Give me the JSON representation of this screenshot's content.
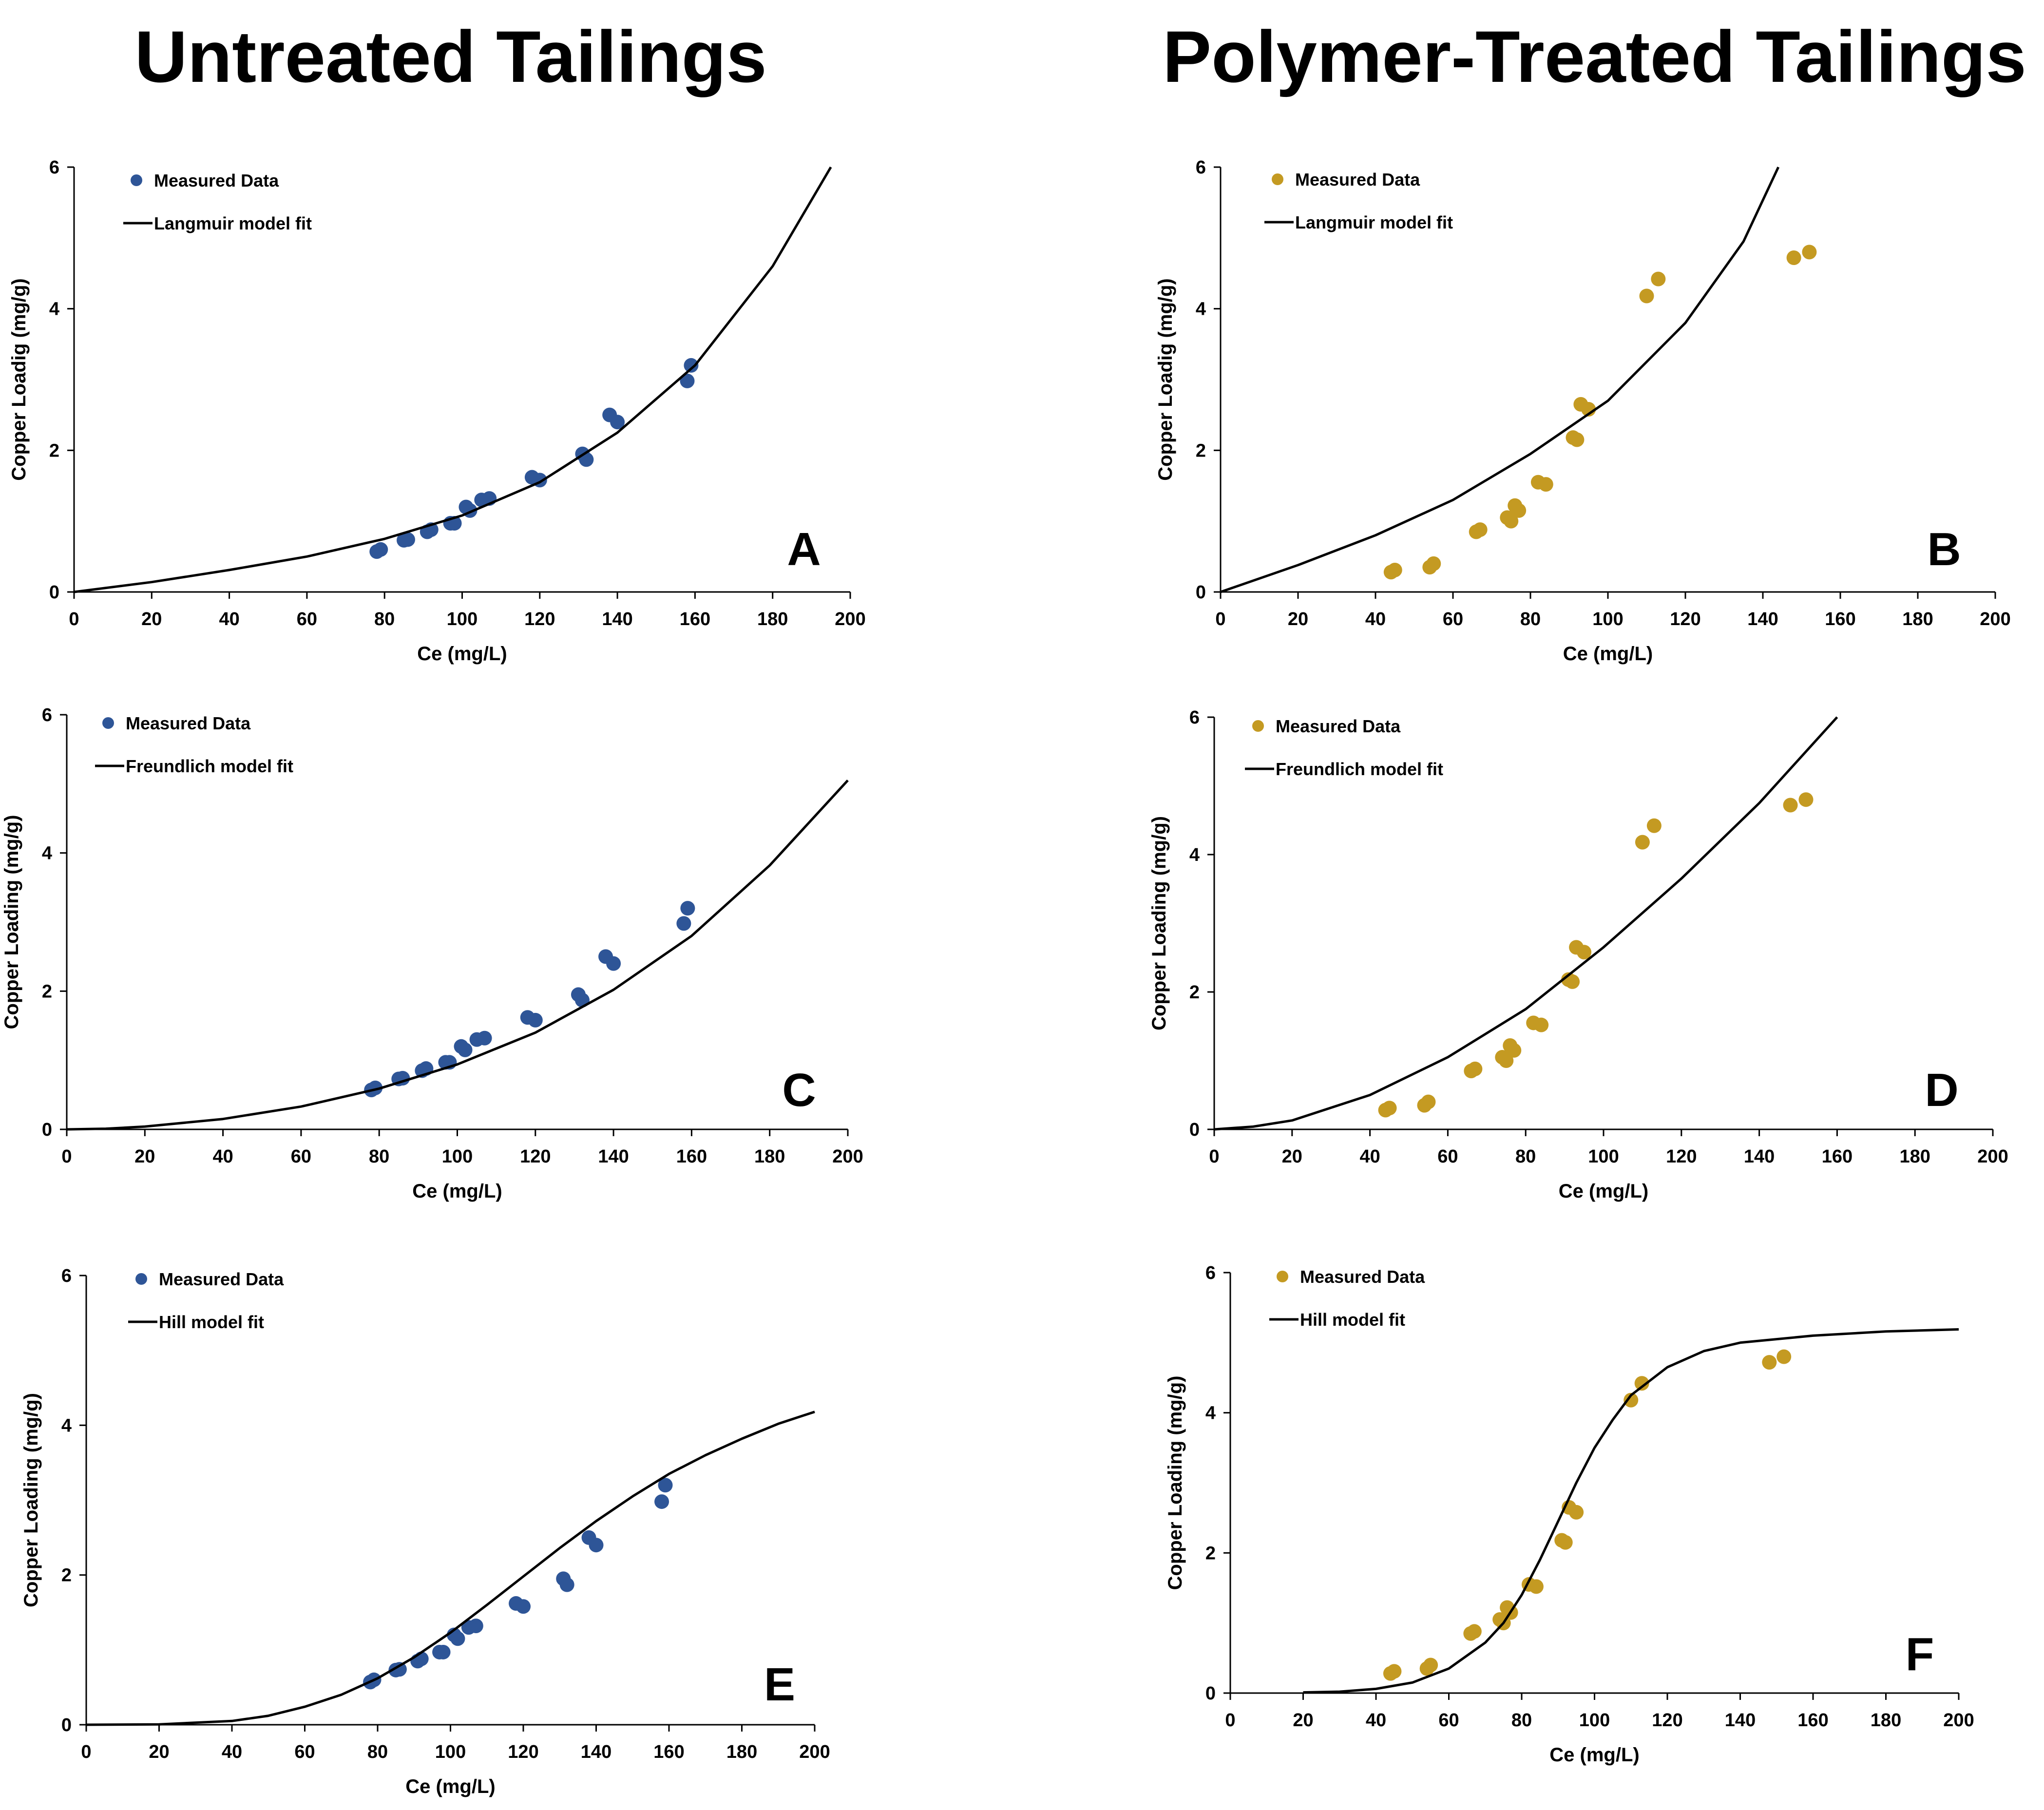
{
  "column_titles": {
    "left": "Untreated Tailings",
    "right": "Polymer-Treated Tailings"
  },
  "colors": {
    "untreated": "#2e5597",
    "treated": "#c49a22",
    "fit_line": "#000000"
  },
  "chart_data": [
    {
      "type": "scatter",
      "panel": "A",
      "column": "left",
      "xlabel": "Ce (mg/L)",
      "ylabel": "Copper Loadig (mg/g)",
      "xlim": [
        0,
        200
      ],
      "ylim": [
        0,
        6
      ],
      "xticks": [
        0,
        20,
        40,
        60,
        80,
        100,
        120,
        140,
        160,
        180,
        200
      ],
      "yticks": [
        0,
        2,
        4,
        6
      ],
      "legend": [
        "Measured Data",
        "Langmuir model fit"
      ],
      "legend_position": "top-left",
      "series": [
        {
          "name": "Measured Data",
          "kind": "points",
          "color": "untreated",
          "x": [
            78,
            79,
            85,
            86,
            91,
            92,
            97,
            98,
            101,
            102,
            105,
            107,
            118,
            120,
            131,
            132,
            138,
            140,
            158,
            159
          ],
          "y": [
            0.57,
            0.6,
            0.73,
            0.74,
            0.85,
            0.88,
            0.97,
            0.97,
            1.2,
            1.15,
            1.3,
            1.32,
            1.62,
            1.58,
            1.95,
            1.87,
            2.5,
            2.4,
            2.98,
            3.2
          ]
        },
        {
          "name": "Langmuir model fit",
          "kind": "line",
          "x": [
            0,
            20,
            40,
            60,
            80,
            100,
            120,
            140,
            160,
            180,
            195
          ],
          "y": [
            0,
            0.14,
            0.31,
            0.5,
            0.75,
            1.08,
            1.55,
            2.25,
            3.2,
            4.6,
            6.0
          ]
        }
      ]
    },
    {
      "type": "scatter",
      "panel": "B",
      "column": "right",
      "xlabel": "Ce (mg/L)",
      "ylabel": "Copper Loadig (mg/g)",
      "xlim": [
        0,
        200
      ],
      "ylim": [
        0,
        6
      ],
      "xticks": [
        0,
        20,
        40,
        60,
        80,
        100,
        120,
        140,
        160,
        180,
        200
      ],
      "yticks": [
        0,
        2,
        4,
        6
      ],
      "legend": [
        "Measured Data",
        "Langmuir model fit"
      ],
      "legend_position": "top-left",
      "series": [
        {
          "name": "Measured Data",
          "kind": "points",
          "color": "treated",
          "x": [
            44,
            45,
            54,
            55,
            66,
            67,
            74,
            75,
            76,
            77,
            82,
            84,
            91,
            92,
            93,
            95,
            110,
            113,
            148,
            152
          ],
          "y": [
            0.28,
            0.31,
            0.35,
            0.4,
            0.85,
            0.88,
            1.05,
            1.0,
            1.22,
            1.15,
            1.55,
            1.52,
            2.18,
            2.15,
            2.65,
            2.58,
            4.18,
            4.42,
            4.72,
            4.8
          ]
        },
        {
          "name": "Langmuir model fit",
          "kind": "line",
          "x": [
            0,
            20,
            40,
            60,
            80,
            100,
            120,
            135,
            144
          ],
          "y": [
            0,
            0.38,
            0.8,
            1.3,
            1.95,
            2.7,
            3.8,
            4.95,
            6.0
          ]
        }
      ]
    },
    {
      "type": "scatter",
      "panel": "C",
      "column": "left",
      "xlabel": "Ce (mg/L)",
      "ylabel": "Copper Loading (mg/g)",
      "xlim": [
        0,
        200
      ],
      "ylim": [
        0,
        6
      ],
      "xticks": [
        0,
        20,
        40,
        60,
        80,
        100,
        120,
        140,
        160,
        180,
        200
      ],
      "yticks": [
        0,
        2,
        4,
        6
      ],
      "legend": [
        "Measured Data",
        "Freundlich model fit"
      ],
      "legend_position": "top-left",
      "series": [
        {
          "name": "Measured Data",
          "kind": "points",
          "color": "untreated",
          "x": [
            78,
            79,
            85,
            86,
            91,
            92,
            97,
            98,
            101,
            102,
            105,
            107,
            118,
            120,
            131,
            132,
            138,
            140,
            158,
            159
          ],
          "y": [
            0.57,
            0.6,
            0.73,
            0.74,
            0.85,
            0.88,
            0.97,
            0.97,
            1.2,
            1.15,
            1.3,
            1.32,
            1.62,
            1.58,
            1.95,
            1.87,
            2.5,
            2.4,
            2.98,
            3.2
          ]
        },
        {
          "name": "Freundlich model fit",
          "kind": "line",
          "x": [
            0,
            10,
            20,
            40,
            60,
            80,
            100,
            120,
            140,
            160,
            180,
            200
          ],
          "y": [
            0,
            0.01,
            0.04,
            0.15,
            0.33,
            0.59,
            0.94,
            1.4,
            2.02,
            2.8,
            3.82,
            5.05
          ]
        }
      ]
    },
    {
      "type": "scatter",
      "panel": "D",
      "column": "right",
      "xlabel": "Ce (mg/L)",
      "ylabel": "Copper Loading (mg/g)",
      "xlim": [
        0,
        200
      ],
      "ylim": [
        0,
        6
      ],
      "xticks": [
        0,
        20,
        40,
        60,
        80,
        100,
        120,
        140,
        160,
        180,
        200
      ],
      "yticks": [
        0,
        2,
        4,
        6
      ],
      "legend": [
        "Measured Data",
        "Freundlich model fit"
      ],
      "legend_position": "top-left",
      "series": [
        {
          "name": "Measured Data",
          "kind": "points",
          "color": "treated",
          "x": [
            44,
            45,
            54,
            55,
            66,
            67,
            74,
            75,
            76,
            77,
            82,
            84,
            91,
            92,
            93,
            95,
            110,
            113,
            148,
            152
          ],
          "y": [
            0.28,
            0.31,
            0.35,
            0.4,
            0.85,
            0.88,
            1.05,
            1.0,
            1.22,
            1.15,
            1.55,
            1.52,
            2.18,
            2.15,
            2.65,
            2.58,
            4.18,
            4.42,
            4.72,
            4.8
          ]
        },
        {
          "name": "Freundlich model fit",
          "kind": "line",
          "x": [
            0,
            10,
            20,
            40,
            60,
            80,
            100,
            120,
            140,
            160
          ],
          "y": [
            0,
            0.04,
            0.13,
            0.5,
            1.05,
            1.75,
            2.65,
            3.65,
            4.75,
            6.0
          ]
        }
      ]
    },
    {
      "type": "scatter",
      "panel": "E",
      "column": "left",
      "xlabel": "Ce (mg/L)",
      "ylabel": "Copper Loading (mg/g)",
      "xlim": [
        0,
        200
      ],
      "ylim": [
        0,
        6
      ],
      "xticks": [
        0,
        20,
        40,
        60,
        80,
        100,
        120,
        140,
        160,
        180,
        200
      ],
      "yticks": [
        0,
        2,
        4,
        6
      ],
      "legend": [
        "Measured Data",
        "Hill model fit"
      ],
      "legend_position": "top-left",
      "series": [
        {
          "name": "Measured Data",
          "kind": "points",
          "color": "untreated",
          "x": [
            78,
            79,
            85,
            86,
            91,
            92,
            97,
            98,
            101,
            102,
            105,
            107,
            118,
            120,
            131,
            132,
            138,
            140,
            158,
            159
          ],
          "y": [
            0.57,
            0.6,
            0.73,
            0.74,
            0.85,
            0.88,
            0.97,
            0.97,
            1.2,
            1.15,
            1.3,
            1.32,
            1.62,
            1.58,
            1.95,
            1.87,
            2.5,
            2.4,
            2.98,
            3.2
          ]
        },
        {
          "name": "Hill model fit",
          "kind": "line",
          "x": [
            0,
            20,
            40,
            50,
            60,
            70,
            80,
            90,
            100,
            110,
            120,
            130,
            140,
            150,
            160,
            170,
            180,
            190,
            200
          ],
          "y": [
            0,
            0.005,
            0.05,
            0.12,
            0.24,
            0.4,
            0.62,
            0.9,
            1.23,
            1.6,
            1.98,
            2.36,
            2.72,
            3.05,
            3.35,
            3.6,
            3.82,
            4.02,
            4.18
          ]
        }
      ]
    },
    {
      "type": "scatter",
      "panel": "F",
      "column": "right",
      "xlabel": "Ce (mg/L)",
      "ylabel": "Copper Loading (mg/g)",
      "xlim": [
        0,
        200
      ],
      "ylim": [
        0,
        6
      ],
      "xticks": [
        0,
        20,
        40,
        60,
        80,
        100,
        120,
        140,
        160,
        180,
        200
      ],
      "yticks": [
        0,
        2,
        4,
        6
      ],
      "legend": [
        "Measured Data",
        "Hill model fit"
      ],
      "legend_position": "top-left",
      "series": [
        {
          "name": "Measured Data",
          "kind": "points",
          "color": "treated",
          "x": [
            44,
            45,
            54,
            55,
            66,
            67,
            74,
            75,
            76,
            77,
            82,
            84,
            91,
            92,
            93,
            95,
            110,
            113,
            148,
            152
          ],
          "y": [
            0.28,
            0.31,
            0.35,
            0.4,
            0.85,
            0.88,
            1.05,
            1.0,
            1.22,
            1.15,
            1.55,
            1.52,
            2.18,
            2.15,
            2.65,
            2.58,
            4.18,
            4.42,
            4.72,
            4.8
          ]
        },
        {
          "name": "Hill model fit",
          "kind": "line",
          "x": [
            20,
            30,
            40,
            50,
            60,
            70,
            75,
            80,
            85,
            90,
            95,
            100,
            105,
            110,
            120,
            130,
            140,
            160,
            180,
            200
          ],
          "y": [
            0.01,
            0.02,
            0.06,
            0.15,
            0.35,
            0.72,
            1.0,
            1.4,
            1.9,
            2.45,
            3.0,
            3.5,
            3.9,
            4.25,
            4.65,
            4.88,
            5.0,
            5.1,
            5.16,
            5.19
          ]
        }
      ]
    }
  ]
}
